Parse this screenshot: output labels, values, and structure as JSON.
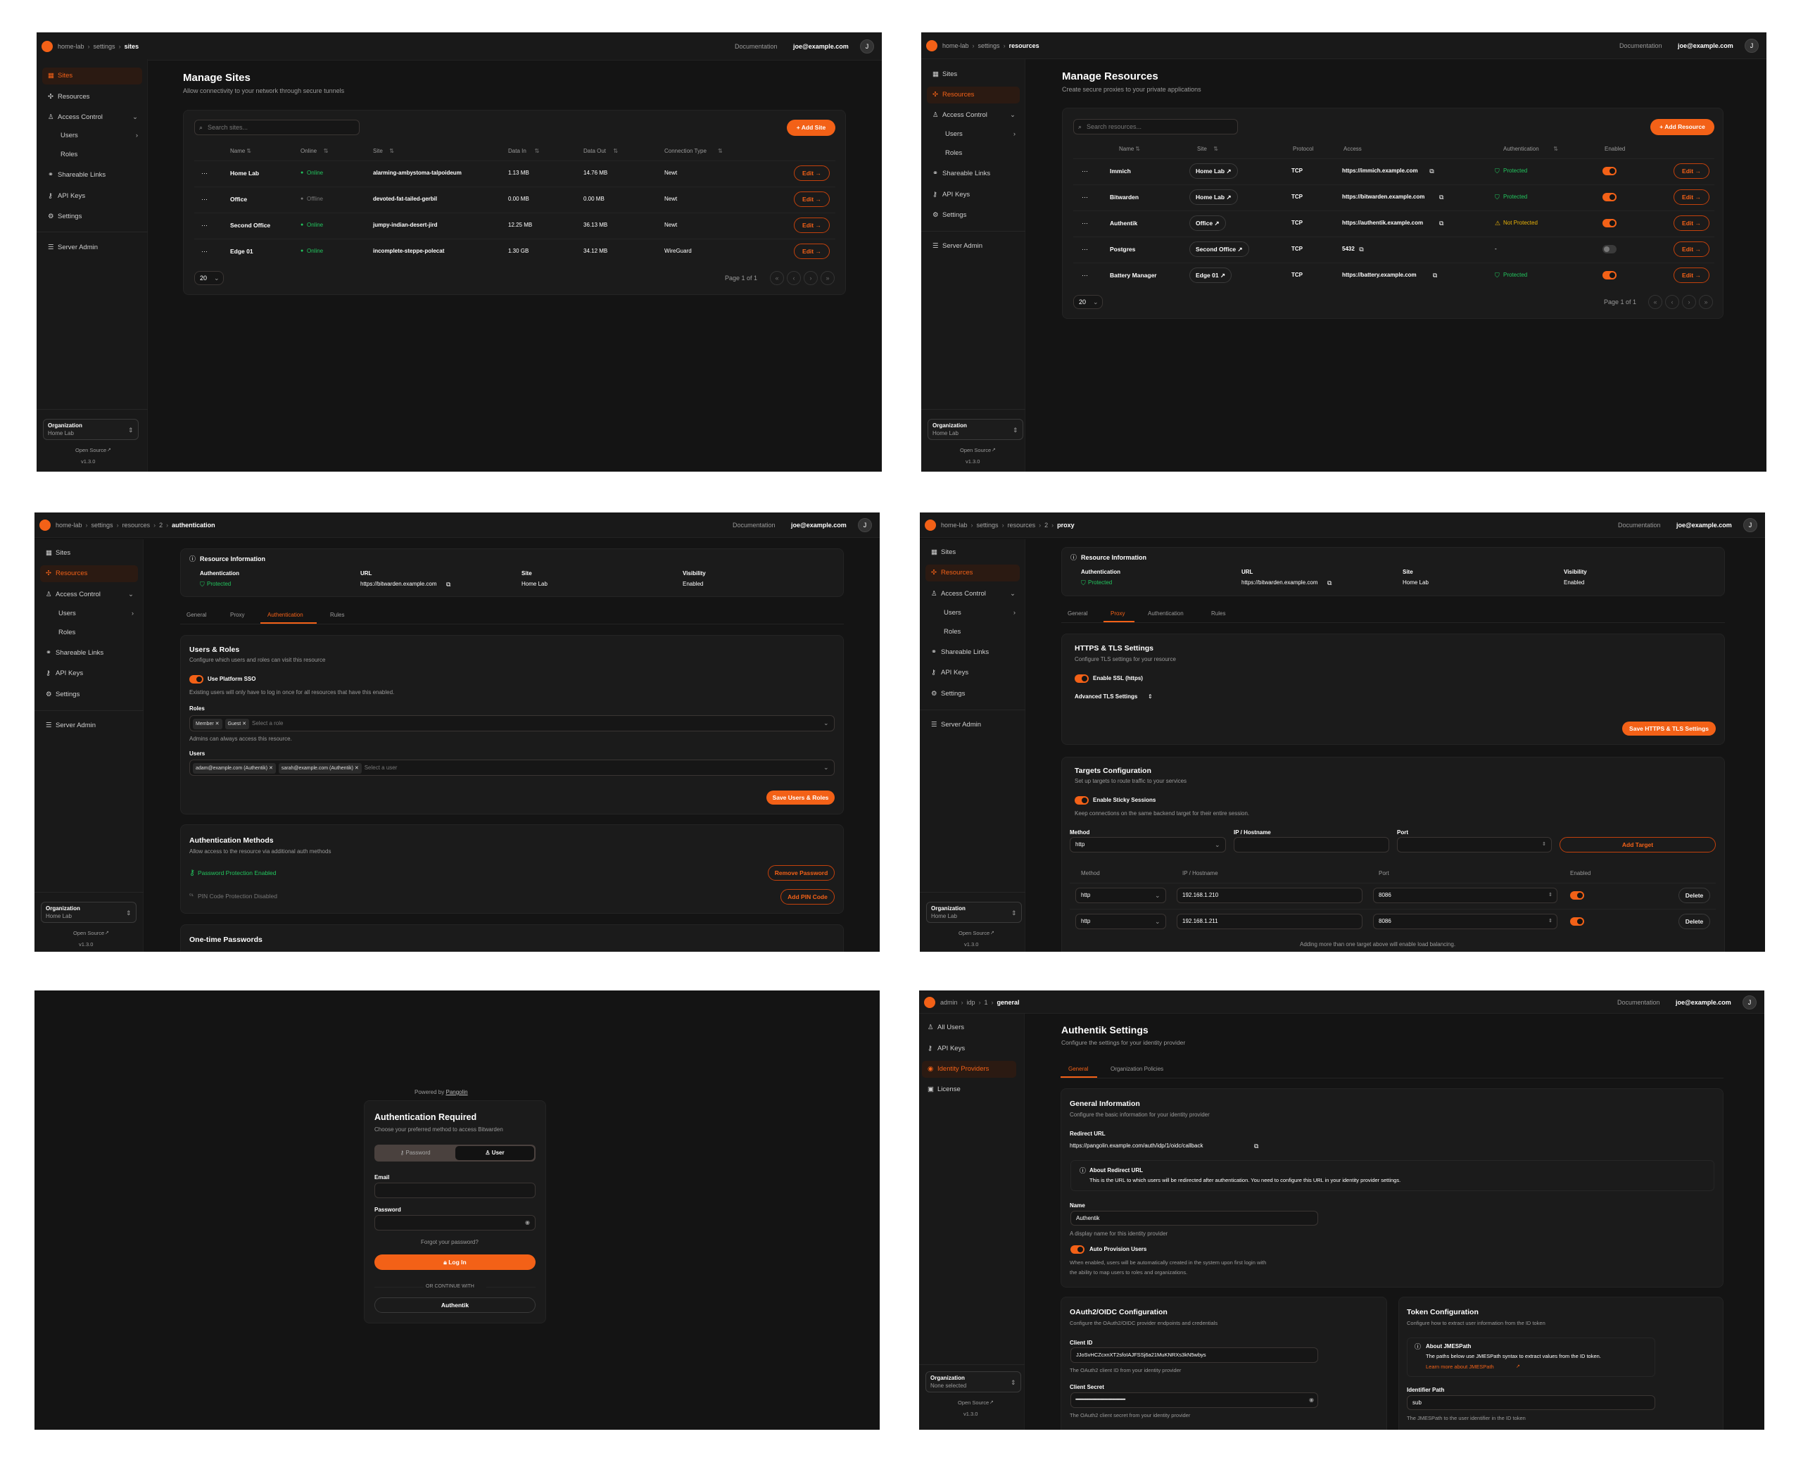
{
  "colors": {
    "accent": "#f36117",
    "success": "#22c55e",
    "warning": "#eab308",
    "background": "#141414"
  },
  "common": {
    "documentation": "Documentation",
    "user_email": "joe@example.com",
    "avatar_initial": "J",
    "org_label": "Organization",
    "open_source": "Open Source",
    "version": "v1.3.0",
    "edit_label": "Edit",
    "page_size": "20",
    "page_info": "Page 1 of 1",
    "sidebar": [
      {
        "label": "Sites",
        "icon": "sites-icon"
      },
      {
        "label": "Resources",
        "icon": "resources-icon"
      },
      {
        "label": "Access Control",
        "icon": "access-control-icon"
      },
      {
        "label": "Users",
        "icon": ""
      },
      {
        "label": "Roles",
        "icon": ""
      },
      {
        "label": "Shareable Links",
        "icon": "link-icon"
      },
      {
        "label": "API Keys",
        "icon": "key-icon"
      },
      {
        "label": "Settings",
        "icon": "gear-icon"
      },
      {
        "label": "Server Admin",
        "icon": "server-icon"
      }
    ],
    "resource_info": {
      "title": "Resource Information",
      "labels": [
        "Authentication",
        "URL",
        "Site",
        "Visibility"
      ],
      "auth_value": "Protected",
      "url": "https://bitwarden.example.com",
      "site": "Home Lab",
      "visibility": "Enabled"
    },
    "resource_tabs": [
      "General",
      "Proxy",
      "Authentication",
      "Rules"
    ]
  },
  "sites_page": {
    "breadcrumb": [
      "home-lab",
      "settings",
      "sites"
    ],
    "active_nav": "Sites",
    "org_name": "Home Lab",
    "title": "Manage Sites",
    "subtitle": "Allow connectivity to your network through secure tunnels",
    "search_placeholder": "Search sites...",
    "add_label": "Add Site",
    "columns": [
      "Name",
      "Online",
      "Site",
      "Data In",
      "Data Out",
      "Connection Type"
    ],
    "rows": [
      {
        "name": "Home Lab",
        "status": "Online",
        "online": true,
        "site": "alarming-ambystoma-talpoideum",
        "data_in": "1.13 MB",
        "data_out": "14.76 MB",
        "connection": "Newt"
      },
      {
        "name": "Office",
        "status": "Offline",
        "online": false,
        "site": "devoted-fat-tailed-gerbil",
        "data_in": "0.00 MB",
        "data_out": "0.00 MB",
        "connection": "Newt"
      },
      {
        "name": "Second Office",
        "status": "Online",
        "online": true,
        "site": "jumpy-indian-desert-jird",
        "data_in": "12.25 MB",
        "data_out": "36.13 MB",
        "connection": "Newt"
      },
      {
        "name": "Edge 01",
        "status": "Online",
        "online": true,
        "site": "incomplete-steppe-polecat",
        "data_in": "1.30 GB",
        "data_out": "34.12 MB",
        "connection": "WireGuard"
      }
    ]
  },
  "resources_page": {
    "breadcrumb": [
      "home-lab",
      "settings",
      "resources"
    ],
    "active_nav": "Resources",
    "org_name": "Home Lab",
    "title": "Manage Resources",
    "subtitle": "Create secure proxies to your private applications",
    "search_placeholder": "Search resources...",
    "add_label": "Add Resource",
    "columns": [
      "Name",
      "Site",
      "Protocol",
      "Access",
      "Authentication",
      "Enabled"
    ],
    "rows": [
      {
        "name": "Immich",
        "site": "Home Lab",
        "protocol": "TCP",
        "access": "https://immich.example.com",
        "auth": "Protected",
        "auth_state": "protected",
        "enabled": true
      },
      {
        "name": "Bitwarden",
        "site": "Home Lab",
        "protocol": "TCP",
        "access": "https://bitwarden.example.com",
        "auth": "Protected",
        "auth_state": "protected",
        "enabled": true
      },
      {
        "name": "Authentik",
        "site": "Office",
        "protocol": "TCP",
        "access": "https://authentik.example.com",
        "auth": "Not Protected",
        "auth_state": "not-protected",
        "enabled": true
      },
      {
        "name": "Postgres",
        "site": "Second Office",
        "protocol": "TCP",
        "access": "5432",
        "auth": "-",
        "auth_state": "none",
        "enabled": false
      },
      {
        "name": "Battery Manager",
        "site": "Edge 01",
        "protocol": "TCP",
        "access": "https://battery.example.com",
        "auth": "Protected",
        "auth_state": "protected",
        "enabled": true
      }
    ]
  },
  "auth_page": {
    "breadcrumb": [
      "home-lab",
      "settings",
      "resources",
      "2",
      "authentication"
    ],
    "active_tab": "Authentication",
    "org_name": "Home Lab",
    "users_roles": {
      "title": "Users & Roles",
      "desc": "Configure which users and roles can visit this resource",
      "sso_label": "Use Platform SSO",
      "sso_enabled": true,
      "sso_help": "Existing users will only have to log in once for all resources that have this enabled.",
      "roles_label": "Roles",
      "roles": [
        "Member",
        "Guest"
      ],
      "roles_placeholder": "Select a role",
      "roles_help": "Admins can always access this resource.",
      "users_label": "Users",
      "users": [
        "adam@example.com (Authentik)",
        "sarah@example.com (Authentik)"
      ],
      "users_placeholder": "Select a user",
      "save_label": "Save Users & Roles"
    },
    "auth_methods": {
      "title": "Authentication Methods",
      "desc": "Allow access to the resource via additional auth methods",
      "password_status": "Password Protection Enabled",
      "remove_password": "Remove Password",
      "pin_status": "PIN Code Protection Disabled",
      "add_pin": "Add PIN Code"
    },
    "otp_title": "One-time Passwords"
  },
  "proxy_page": {
    "breadcrumb": [
      "home-lab",
      "settings",
      "resources",
      "2",
      "proxy"
    ],
    "active_tab": "Proxy",
    "org_name": "Home Lab",
    "tls": {
      "title": "HTTPS & TLS Settings",
      "desc": "Configure TLS settings for your resource",
      "ssl_label": "Enable SSL (https)",
      "ssl_enabled": true,
      "advanced": "Advanced TLS Settings",
      "save_label": "Save HTTPS & TLS Settings"
    },
    "targets": {
      "title": "Targets Configuration",
      "desc": "Set up targets to route traffic to your services",
      "sticky_label": "Enable Sticky Sessions",
      "sticky_enabled": true,
      "sticky_help": "Keep connections on the same backend target for their entire session.",
      "form_labels": [
        "Method",
        "IP / Hostname",
        "Port"
      ],
      "form_method": "http",
      "add_label": "Add Target",
      "columns": [
        "Method",
        "IP / Hostname",
        "Port",
        "Enabled"
      ],
      "rows": [
        {
          "method": "http",
          "ip": "192.168.1.210",
          "port": "8086",
          "enabled": true
        },
        {
          "method": "http",
          "ip": "192.168.1.211",
          "port": "8086",
          "enabled": true
        }
      ],
      "delete_label": "Delete",
      "footer_note": "Adding more than one target above will enable load balancing."
    }
  },
  "login_page": {
    "powered_by": "Powered by",
    "brand": "Pangolin",
    "title": "Authentication Required",
    "desc": "Choose your preferred method to access Bitwarden",
    "tab_password": "Password",
    "tab_user": "User",
    "active_tab": "User",
    "email_label": "Email",
    "password_label": "Password",
    "forgot": "Forgot your password?",
    "login": "Log In",
    "or_continue": "OR CONTINUE WITH",
    "sso": "Authentik"
  },
  "idp_page": {
    "breadcrumb": [
      "admin",
      "idp",
      "1",
      "general"
    ],
    "sidebar": [
      {
        "label": "All Users",
        "icon": "users-icon"
      },
      {
        "label": "API Keys",
        "icon": "key-icon"
      },
      {
        "label": "Identity Providers",
        "icon": "fingerprint-icon"
      },
      {
        "label": "License",
        "icon": "license-icon"
      }
    ],
    "active_nav": "Identity Providers",
    "org_name": "None selected",
    "title": "Authentik Settings",
    "subtitle": "Configure the settings for your identity provider",
    "tabs": [
      "General",
      "Organization Policies"
    ],
    "active_tab": "General",
    "general": {
      "title": "General Information",
      "desc": "Configure the basic information for your identity provider",
      "redirect_label": "Redirect URL",
      "redirect_url": "https://pangolin.example.com/auth/idp/1/oidc/callback",
      "about_title": "About Redirect URL",
      "about_text": "This is the URL to which users will be redirected after authentication. You need to configure this URL in your identity provider settings.",
      "name_label": "Name",
      "name_value": "Authentik",
      "name_help": "A display name for this identity provider",
      "auto_label": "Auto Provision Users",
      "auto_enabled": true,
      "auto_help_1": "When enabled, users will be automatically created in the system upon first login with",
      "auto_help_2": "the ability to map users to roles and organizations."
    },
    "oauth": {
      "title": "OAuth2/OIDC Configuration",
      "desc": "Configure the OAuth2/OIDC provider endpoints and credentials",
      "client_id_label": "Client ID",
      "client_id": "JJoSvHCZcxnXT2sfoIAJFSSj6a21MuKNRXs3kN5wbys",
      "client_id_help": "The OAuth2 client ID from your identity provider",
      "client_secret_label": "Client Secret",
      "client_secret_masked": "••••••••••••••••••••••••••••••••••••••••••••••••••••••••••••••••",
      "client_secret_help": "The OAuth2 client secret from your identity provider"
    },
    "token": {
      "title": "Token Configuration",
      "desc": "Configure how to extract user information from the ID token",
      "about_title": "About JMESPath",
      "about_text": "The paths below use JMESPath syntax to extract values from the ID token.",
      "learn_more": "Learn more about JMESPath",
      "identifier_label": "Identifier Path",
      "identifier_value": "sub",
      "identifier_help": "The JMESPath to the user identifier in the ID token"
    }
  }
}
